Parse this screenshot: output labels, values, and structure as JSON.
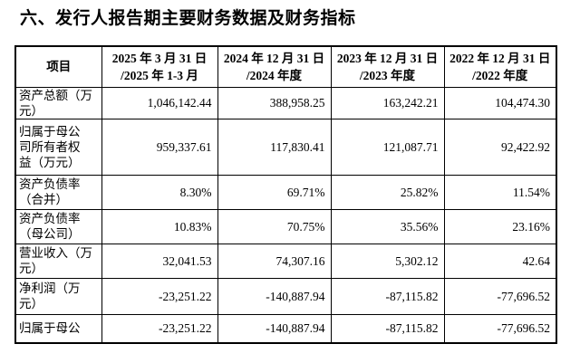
{
  "page": {
    "background_color": "#ffffff",
    "text_color": "#000000",
    "border_color": "#000000"
  },
  "title": "六、发行人报告期主要财务数据及财务指标",
  "table": {
    "columns": [
      "项目",
      "2025 年 3 月 31 日\n/2025 年 1-3 月",
      "2024 年 12 月 31 日\n/2024 年度",
      "2023 年 12 月 31 日\n/2023 年度",
      "2022 年 12 月 31 日\n/2022 年度"
    ],
    "rows": [
      {
        "label": "资产总额（万\n元）",
        "values": [
          "1,046,142.44",
          "388,958.25",
          "163,242.21",
          "104,474.30"
        ]
      },
      {
        "label": "归属于母公\n司所有者权\n益（万元）",
        "values": [
          "959,337.61",
          "117,830.41",
          "121,087.71",
          "92,422.92"
        ]
      },
      {
        "label": "资产负债率\n（合并）",
        "values": [
          "8.30%",
          "69.71%",
          "25.82%",
          "11.54%"
        ]
      },
      {
        "label": "资产负债率\n（母公司）",
        "values": [
          "10.83%",
          "70.75%",
          "35.56%",
          "23.16%"
        ]
      },
      {
        "label": "营业收入（万\n元）",
        "values": [
          "32,041.53",
          "74,307.16",
          "5,302.12",
          "42.64"
        ]
      },
      {
        "label": "净利润（万\n元）",
        "values": [
          "-23,251.22",
          "-140,887.94",
          "-87,115.82",
          "-77,696.52"
        ]
      },
      {
        "label": "归属于母公",
        "values": [
          "-23,251.22",
          "-140,887.94",
          "-87,115.82",
          "-77,696.52"
        ]
      }
    ]
  }
}
